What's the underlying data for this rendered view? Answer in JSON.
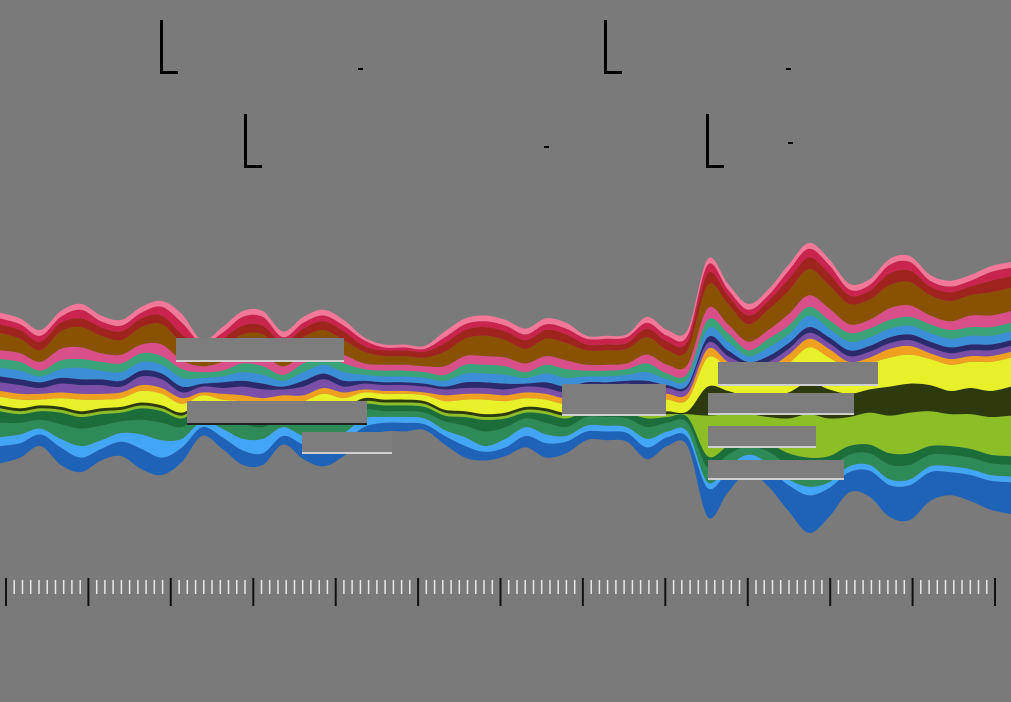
{
  "chart_data": {
    "type": "area",
    "layout": "streamgraph",
    "x": [
      0,
      1,
      2,
      3,
      4,
      5,
      6,
      7,
      8,
      9,
      10,
      11,
      12,
      13,
      14,
      15,
      16,
      17,
      18,
      19,
      20,
      21,
      22,
      23,
      24,
      25,
      26,
      27,
      28,
      29,
      30,
      31,
      32,
      33,
      34,
      35,
      36,
      37,
      38,
      39,
      40,
      41,
      42,
      43,
      44,
      45,
      46,
      47,
      48,
      49,
      50
    ],
    "series": [
      {
        "color": "#1e63b8",
        "values": [
          6,
          5,
          4,
          6,
          5,
          4,
          5,
          7,
          6,
          5,
          3,
          4,
          5,
          4,
          3,
          5,
          6,
          5,
          4,
          3,
          3,
          2,
          3,
          4,
          3,
          3,
          4,
          5,
          4,
          3,
          3,
          3,
          4,
          3,
          3,
          10,
          7,
          4,
          6,
          9,
          13,
          10,
          7,
          9,
          11,
          12,
          10,
          8,
          9,
          10,
          11
        ]
      },
      {
        "color": "#42a5f5",
        "values": [
          3,
          3,
          2,
          3,
          4,
          3,
          3,
          5,
          6,
          3,
          2,
          3,
          4,
          5,
          3,
          3,
          4,
          3,
          3,
          2,
          2,
          2,
          2,
          3,
          2,
          3,
          3,
          3,
          2,
          2,
          2,
          2,
          3,
          2,
          2,
          2,
          2,
          2,
          2,
          2,
          3,
          2,
          2,
          2,
          2,
          2,
          2,
          2,
          2,
          2,
          2
        ]
      },
      {
        "color": "#2e8b57",
        "values": [
          5,
          4,
          3,
          5,
          6,
          5,
          4,
          5,
          6,
          4,
          3,
          3,
          5,
          4,
          3,
          4,
          5,
          4,
          3,
          2,
          2,
          2,
          3,
          4,
          5,
          4,
          3,
          4,
          3,
          3,
          3,
          3,
          4,
          3,
          3,
          5,
          4,
          3,
          4,
          5,
          6,
          5,
          4,
          4,
          5,
          5,
          4,
          4,
          4,
          4,
          4
        ]
      },
      {
        "color": "#1b6e3a",
        "values": [
          4,
          3,
          3,
          4,
          4,
          4,
          3,
          4,
          4,
          3,
          2,
          3,
          3,
          3,
          2,
          3,
          4,
          3,
          2,
          2,
          2,
          2,
          2,
          3,
          4,
          3,
          2,
          3,
          3,
          2,
          2,
          2,
          3,
          2,
          2,
          4,
          3,
          3,
          3,
          4,
          4,
          4,
          3,
          3,
          4,
          4,
          3,
          3,
          3,
          3,
          3
        ]
      },
      {
        "color": "#8cbf26",
        "values": [
          1,
          1,
          1,
          1,
          1,
          1,
          1,
          1,
          1,
          1,
          1,
          1,
          1,
          1,
          1,
          1,
          1,
          1,
          1,
          1,
          1,
          1,
          1,
          1,
          1,
          1,
          1,
          1,
          1,
          1,
          1,
          1,
          1,
          1,
          1,
          14,
          11,
          8,
          9,
          12,
          15,
          13,
          10,
          11,
          13,
          14,
          12,
          11,
          12,
          13,
          14
        ]
      },
      {
        "color": "#2c3a0e",
        "values": [
          1,
          1,
          1,
          1,
          1,
          1,
          1,
          1,
          1,
          1,
          1,
          1,
          1,
          1,
          1,
          1,
          1,
          1,
          1,
          1,
          1,
          1,
          1,
          1,
          1,
          1,
          1,
          1,
          1,
          1,
          1,
          1,
          1,
          1,
          1,
          10,
          8,
          6,
          7,
          9,
          11,
          10,
          8,
          8,
          10,
          10,
          9,
          8,
          9,
          9,
          10
        ]
      },
      {
        "color": "#e8f02a",
        "values": [
          3,
          3,
          2,
          3,
          4,
          3,
          3,
          4,
          4,
          3,
          2,
          2,
          3,
          3,
          2,
          3,
          4,
          3,
          2,
          2,
          2,
          2,
          3,
          4,
          5,
          4,
          3,
          3,
          3,
          3,
          3,
          4,
          5,
          4,
          4,
          10,
          8,
          7,
          8,
          10,
          12,
          11,
          9,
          9,
          10,
          10,
          9,
          9,
          9,
          10,
          10
        ]
      },
      {
        "color": "#f0a020",
        "values": [
          2,
          2,
          2,
          2,
          2,
          2,
          2,
          2,
          2,
          2,
          1,
          2,
          2,
          2,
          2,
          2,
          2,
          2,
          1,
          1,
          1,
          1,
          2,
          2,
          2,
          2,
          2,
          2,
          2,
          2,
          2,
          2,
          2,
          2,
          2,
          3,
          2,
          2,
          2,
          3,
          3,
          3,
          2,
          2,
          3,
          3,
          2,
          2,
          2,
          2,
          2
        ]
      },
      {
        "color": "#7b4fa8",
        "values": [
          3,
          3,
          2,
          3,
          3,
          3,
          2,
          3,
          3,
          2,
          2,
          2,
          3,
          3,
          2,
          3,
          3,
          2,
          2,
          2,
          2,
          2,
          2,
          2,
          2,
          2,
          2,
          2,
          2,
          2,
          2,
          2,
          2,
          2,
          2,
          2,
          2,
          2,
          2,
          2,
          2,
          2,
          2,
          2,
          2,
          2,
          2,
          2,
          2,
          2,
          2
        ]
      },
      {
        "color": "#2a2a6e",
        "values": [
          2,
          2,
          2,
          2,
          2,
          2,
          2,
          2,
          2,
          2,
          1,
          2,
          2,
          2,
          1,
          2,
          2,
          2,
          1,
          1,
          1,
          1,
          1,
          2,
          2,
          2,
          1,
          2,
          2,
          1,
          1,
          1,
          2,
          1,
          1,
          2,
          2,
          1,
          2,
          2,
          2,
          2,
          2,
          2,
          2,
          2,
          2,
          2,
          2,
          2,
          2
        ]
      },
      {
        "color": "#3b8fd6",
        "values": [
          3,
          3,
          2,
          3,
          4,
          3,
          3,
          3,
          3,
          3,
          2,
          2,
          3,
          3,
          2,
          3,
          3,
          3,
          2,
          2,
          2,
          2,
          2,
          3,
          3,
          3,
          2,
          3,
          3,
          2,
          2,
          2,
          3,
          2,
          2,
          3,
          3,
          2,
          3,
          3,
          4,
          3,
          3,
          3,
          3,
          3,
          3,
          3,
          3,
          3,
          3
        ]
      },
      {
        "color": "#3aa37a",
        "values": [
          3,
          3,
          2,
          3,
          3,
          3,
          3,
          3,
          3,
          3,
          2,
          2,
          3,
          3,
          2,
          3,
          3,
          3,
          2,
          2,
          2,
          2,
          2,
          3,
          3,
          3,
          2,
          3,
          3,
          2,
          2,
          2,
          3,
          2,
          2,
          3,
          3,
          2,
          3,
          3,
          3,
          3,
          3,
          3,
          3,
          3,
          3,
          3,
          3,
          3,
          3
        ]
      },
      {
        "color": "#d94f8a",
        "values": [
          3,
          3,
          3,
          4,
          4,
          3,
          3,
          3,
          4,
          3,
          2,
          3,
          4,
          4,
          3,
          3,
          3,
          3,
          2,
          2,
          2,
          2,
          3,
          3,
          3,
          3,
          3,
          3,
          3,
          2,
          2,
          2,
          3,
          3,
          3,
          4,
          3,
          3,
          3,
          4,
          4,
          4,
          3,
          3,
          4,
          4,
          3,
          3,
          4,
          4,
          4
        ]
      },
      {
        "color": "#8a5200",
        "values": [
          6,
          5,
          4,
          6,
          7,
          6,
          5,
          6,
          7,
          6,
          4,
          5,
          6,
          7,
          5,
          6,
          6,
          5,
          4,
          3,
          3,
          3,
          5,
          6,
          7,
          6,
          5,
          6,
          6,
          5,
          5,
          5,
          6,
          5,
          5,
          8,
          7,
          6,
          7,
          8,
          9,
          8,
          7,
          7,
          8,
          8,
          7,
          7,
          7,
          8,
          8
        ]
      },
      {
        "color": "#a0241e",
        "values": [
          3,
          3,
          3,
          3,
          3,
          3,
          3,
          3,
          3,
          3,
          2,
          3,
          3,
          3,
          3,
          3,
          3,
          3,
          2,
          2,
          2,
          2,
          3,
          3,
          3,
          3,
          3,
          3,
          3,
          2,
          2,
          2,
          3,
          3,
          3,
          4,
          3,
          3,
          3,
          4,
          4,
          4,
          3,
          3,
          4,
          4,
          3,
          3,
          3,
          4,
          4
        ]
      },
      {
        "color": "#c8244e",
        "values": [
          2,
          2,
          2,
          2,
          3,
          2,
          2,
          2,
          3,
          4,
          2,
          2,
          3,
          3,
          2,
          2,
          2,
          2,
          2,
          1,
          1,
          1,
          2,
          2,
          2,
          2,
          2,
          2,
          2,
          2,
          2,
          2,
          2,
          2,
          2,
          3,
          2,
          2,
          2,
          3,
          3,
          3,
          2,
          2,
          3,
          3,
          2,
          2,
          2,
          3,
          3
        ]
      },
      {
        "color": "#f2789a",
        "values": [
          2,
          2,
          2,
          2,
          2,
          2,
          2,
          2,
          2,
          3,
          1,
          2,
          2,
          2,
          2,
          2,
          2,
          2,
          1,
          1,
          1,
          1,
          2,
          2,
          2,
          2,
          2,
          2,
          2,
          1,
          1,
          1,
          2,
          2,
          2,
          2,
          2,
          2,
          2,
          2,
          2,
          2,
          2,
          2,
          2,
          2,
          2,
          2,
          2,
          2,
          2
        ]
      }
    ],
    "title": "",
    "grid": false
  }
}
